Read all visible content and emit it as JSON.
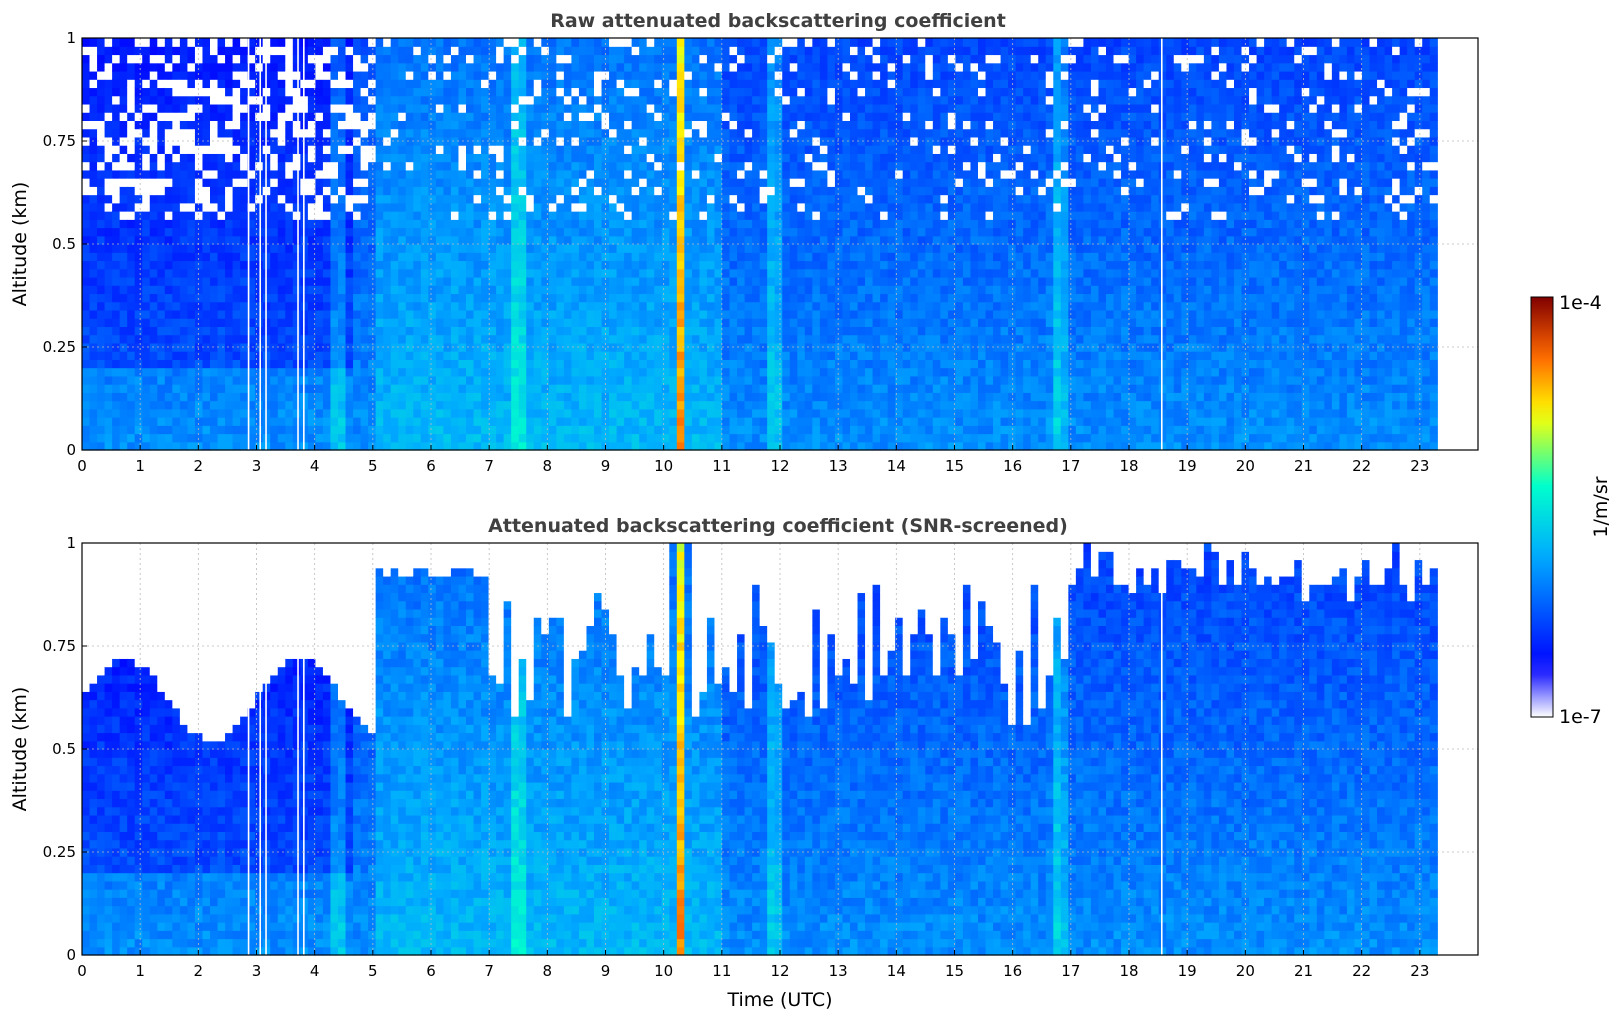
{
  "chart_data": [
    {
      "type": "heatmap",
      "title": "Raw attenuated backscattering coefficient",
      "xlabel": "",
      "ylabel": "Altitude (km)",
      "xlim": [
        0,
        24
      ],
      "ylim": [
        0,
        1
      ],
      "x_data_end": 23.3,
      "xticks": [
        "0",
        "1",
        "2",
        "3",
        "4",
        "5",
        "6",
        "7",
        "8",
        "9",
        "10",
        "11",
        "12",
        "13",
        "14",
        "15",
        "16",
        "17",
        "18",
        "19",
        "20",
        "21",
        "22",
        "23"
      ],
      "yticks": [
        "0",
        "0.25",
        "0.5",
        "0.75",
        "1"
      ],
      "grid": true,
      "screened": false,
      "bright_columns": [
        {
          "x": 10.3,
          "intensity": "high"
        },
        {
          "x": 16.8,
          "intensity": "medium"
        },
        {
          "x": 7.5,
          "intensity": "medium"
        },
        {
          "x": 11.9,
          "intensity": "medium"
        },
        {
          "x": 4.4,
          "intensity": "medium"
        }
      ],
      "white_gaps": [
        2.85,
        3.05,
        3.15,
        3.7,
        3.8,
        18.55
      ]
    },
    {
      "type": "heatmap",
      "title": "Attenuated backscattering coefficient (SNR-screened)",
      "xlabel": "Time (UTC)",
      "ylabel": "Altitude (km)",
      "xlim": [
        0,
        24
      ],
      "ylim": [
        0,
        1
      ],
      "x_data_end": 23.3,
      "xticks": [
        "0",
        "1",
        "2",
        "3",
        "4",
        "5",
        "6",
        "7",
        "8",
        "9",
        "10",
        "11",
        "12",
        "13",
        "14",
        "15",
        "16",
        "17",
        "18",
        "19",
        "20",
        "21",
        "22",
        "23"
      ],
      "yticks": [
        "0",
        "0.25",
        "0.5",
        "0.75",
        "1"
      ],
      "grid": true,
      "screened": true,
      "bright_columns": [
        {
          "x": 10.3,
          "intensity": "high"
        },
        {
          "x": 16.8,
          "intensity": "medium"
        },
        {
          "x": 7.5,
          "intensity": "medium"
        },
        {
          "x": 11.9,
          "intensity": "medium"
        },
        {
          "x": 4.4,
          "intensity": "medium"
        }
      ],
      "white_gaps": [
        2.85,
        3.05,
        3.15,
        3.7,
        3.8,
        18.55
      ]
    }
  ],
  "colorbar": {
    "label": "1/m/sr",
    "max_label": "1e-4",
    "min_label": "1e-7",
    "scale": "log",
    "colors": [
      "#ffffff",
      "#0000ff",
      "#00aaff",
      "#00ffcc",
      "#ffff00",
      "#ff6600",
      "#800000"
    ]
  }
}
